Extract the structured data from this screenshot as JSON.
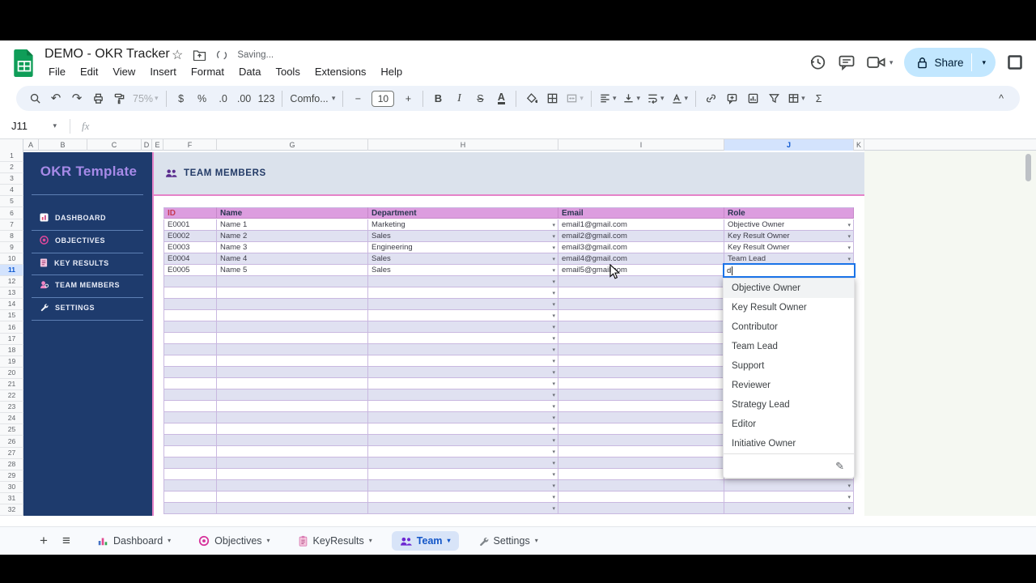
{
  "header": {
    "doc_title": "DEMO - OKR Tracker",
    "saving": "Saving...",
    "menus": [
      "File",
      "Edit",
      "View",
      "Insert",
      "Format",
      "Data",
      "Tools",
      "Extensions",
      "Help"
    ],
    "share": "Share"
  },
  "toolbar": {
    "buttons": [
      {
        "name": "search",
        "icon": "search"
      },
      {
        "name": "undo",
        "glyph": "↶"
      },
      {
        "name": "redo",
        "glyph": "↷"
      },
      {
        "name": "print",
        "icon": "print"
      },
      {
        "name": "paint-format",
        "icon": "paint"
      },
      {
        "name": "zoom",
        "text": "75%",
        "caret": true,
        "disabled": true
      },
      {
        "sep": true
      },
      {
        "name": "format-currency",
        "text": "$"
      },
      {
        "name": "format-percent",
        "text": "%"
      },
      {
        "name": "decrease-decimal",
        "text": ".0"
      },
      {
        "name": "increase-decimal",
        "text": ".00"
      },
      {
        "name": "more-formats",
        "text": "123"
      },
      {
        "sep": true
      },
      {
        "name": "font",
        "text": "Comfo...",
        "caret": true,
        "wide": true
      },
      {
        "sep": true
      },
      {
        "name": "decrease-font-size",
        "text": "−"
      },
      {
        "name": "font-size",
        "text": "10",
        "boxed": true
      },
      {
        "name": "increase-font-size",
        "text": "+"
      },
      {
        "sep": true
      },
      {
        "name": "bold",
        "text": "B",
        "cls": "tb-bold"
      },
      {
        "name": "italic",
        "text": "I",
        "cls": "tb-italic"
      },
      {
        "name": "strikethrough",
        "text": "S",
        "cls": "tb-strike"
      },
      {
        "name": "text-color",
        "text": "A",
        "cls": "tb-underA"
      },
      {
        "sep": true
      },
      {
        "name": "fill-color",
        "icon": "bucket"
      },
      {
        "name": "borders",
        "icon": "borders"
      },
      {
        "name": "merge-cells",
        "icon": "merge",
        "caret": true,
        "disabled": true
      },
      {
        "sep": true
      },
      {
        "name": "horizontal-align",
        "icon": "alignleft",
        "caret": true
      },
      {
        "name": "vertical-align",
        "icon": "valign",
        "caret": true
      },
      {
        "name": "text-wrapping",
        "icon": "wrap",
        "caret": true
      },
      {
        "name": "text-rotation",
        "icon": "rotate",
        "caret": true
      },
      {
        "sep": true
      },
      {
        "name": "insert-link",
        "icon": "link"
      },
      {
        "name": "insert-comment",
        "icon": "commentadd"
      },
      {
        "name": "insert-chart",
        "icon": "chart"
      },
      {
        "name": "create-filter",
        "icon": "filter"
      },
      {
        "name": "table-views",
        "icon": "tableview",
        "caret": true
      },
      {
        "name": "functions",
        "text": "Σ"
      }
    ],
    "collapse": "^"
  },
  "formula_bar": {
    "name_box": "J11",
    "fx": "fx"
  },
  "grid": {
    "columns": [
      "A",
      "B",
      "C",
      "D",
      "E",
      "F",
      "G",
      "H",
      "I",
      "J",
      "K"
    ],
    "row_count": 32,
    "selected_row": 11,
    "selected_column": "J"
  },
  "sidebar": {
    "title": "OKR Template",
    "items": [
      {
        "label": "DASHBOARD",
        "icon": "sb-dashboard"
      },
      {
        "label": "OBJECTIVES",
        "icon": "sb-target"
      },
      {
        "label": "KEY RESULTS",
        "icon": "sb-notebook"
      },
      {
        "label": "TEAM MEMBERS",
        "icon": "sb-person"
      },
      {
        "label": "SETTINGS",
        "icon": "sb-wrench"
      }
    ]
  },
  "sheet": {
    "section_title": "TEAM MEMBERS",
    "table": {
      "headers": [
        "ID",
        "Name",
        "Department",
        "Email",
        "Role"
      ],
      "rows": [
        [
          "E0001",
          "Name 1",
          "Marketing",
          "email1@gmail.com",
          "Objective Owner"
        ],
        [
          "E0002",
          "Name 2",
          "Sales",
          "email2@gmail.com",
          "Key Result Owner"
        ],
        [
          "E0003",
          "Name 3",
          "Engineering",
          "email3@gmail.com",
          "Key Result Owner"
        ],
        [
          "E0004",
          "Name 4",
          "Sales",
          "email4@gmail.com",
          "Team Lead"
        ],
        [
          "E0005",
          "Name 5",
          "Sales",
          "email5@gmail.com",
          ""
        ]
      ],
      "empty_row_count": 21
    },
    "editing_cell": {
      "ref": "J11",
      "value": "d"
    },
    "role_dropdown": {
      "options": [
        "Objective Owner",
        "Key Result Owner",
        "Contributor",
        "Team Lead",
        "Support",
        "Reviewer",
        "Strategy Lead",
        "Editor",
        "Initiative Owner"
      ],
      "highlighted": "Objective Owner"
    }
  },
  "tabs": [
    {
      "label": "Dashboard",
      "icon": "tab-chart",
      "active": false
    },
    {
      "label": "Objectives",
      "icon": "tab-target",
      "active": false
    },
    {
      "label": "KeyResults",
      "icon": "tab-clipboard",
      "active": false
    },
    {
      "label": "Team",
      "icon": "tab-people",
      "active": true
    },
    {
      "label": "Settings",
      "icon": "tab-wrench",
      "active": false
    }
  ],
  "colors": {
    "sidebar_bg": "#1e3b6d",
    "sidebar_title": "#a78ae8",
    "table_header_bg": "#dc9ddf",
    "table_header_id_text": "#c63a55",
    "row_alt": "#e0e1f1",
    "band_bg": "#dbe2ec",
    "accent_line": "#e583c8",
    "active_cell_border": "#1a73e8",
    "share_bg": "#c2e7ff",
    "selected_header_bg": "#d3e3fd"
  }
}
